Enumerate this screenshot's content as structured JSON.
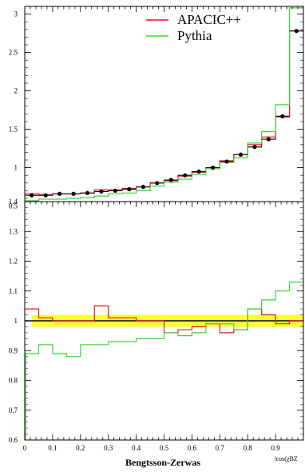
{
  "chart_data": [
    {
      "type": "line",
      "panel": "distribution",
      "xlim": [
        0,
        1
      ],
      "ylim": [
        0.35,
        3.1
      ],
      "yticks": [
        "0.5",
        "1",
        "1.5",
        "2",
        "2.5",
        "3"
      ],
      "bin_edges": [
        0,
        0.05,
        0.1,
        0.15,
        0.2,
        0.25,
        0.3,
        0.35,
        0.4,
        0.45,
        0.5,
        0.55,
        0.6,
        0.65,
        0.7,
        0.75,
        0.8,
        0.85,
        0.9,
        0.95,
        1.0
      ],
      "data_points": {
        "x": [
          0.025,
          0.075,
          0.125,
          0.175,
          0.225,
          0.275,
          0.325,
          0.375,
          0.425,
          0.475,
          0.525,
          0.575,
          0.625,
          0.675,
          0.725,
          0.775,
          0.825,
          0.875,
          0.925,
          0.975
        ],
        "y": [
          0.64,
          0.64,
          0.66,
          0.66,
          0.67,
          0.69,
          0.7,
          0.72,
          0.75,
          0.8,
          0.84,
          0.9,
          0.95,
          1.0,
          1.08,
          1.17,
          1.27,
          1.37,
          1.67,
          2.78
        ]
      },
      "series": [
        {
          "name": "APACIC++",
          "color": "#e8141e",
          "values": [
            0.66,
            0.65,
            0.66,
            0.66,
            0.67,
            0.71,
            0.71,
            0.73,
            0.75,
            0.8,
            0.83,
            0.89,
            0.94,
            0.99,
            1.09,
            1.17,
            1.3,
            1.4,
            1.66,
            2.78
          ]
        },
        {
          "name": "Pythia",
          "color": "#3ad63a",
          "values": [
            0.57,
            0.59,
            0.59,
            0.6,
            0.61,
            0.63,
            0.66,
            0.67,
            0.7,
            0.76,
            0.81,
            0.85,
            0.91,
            0.99,
            1.07,
            1.13,
            1.32,
            1.47,
            1.82,
            3.08
          ]
        }
      ],
      "line_color": "#000000",
      "legend": {
        "position": "top-right",
        "entries": [
          "APACIC++",
          "Pythia"
        ]
      }
    },
    {
      "type": "line",
      "panel": "ratio",
      "xlim": [
        0,
        1
      ],
      "ylim": [
        0.6,
        1.4
      ],
      "xticks": [
        "0",
        "0.1",
        "0.2",
        "0.3",
        "0.4",
        "0.5",
        "0.6",
        "0.7",
        "0.8",
        "0.9"
      ],
      "yticks": [
        "0.6",
        "0.7",
        "0.8",
        "0.9",
        "1",
        "1.1",
        "1.2",
        "1.3",
        "1.4"
      ],
      "band": {
        "low": 0.98,
        "high": 1.02,
        "color": "#ffff33"
      },
      "reference": 1.0,
      "series": [
        {
          "name": "APACIC++",
          "color": "#e8141e",
          "values": [
            1.04,
            1.01,
            1.0,
            1.0,
            1.0,
            1.05,
            1.01,
            1.01,
            1.0,
            1.0,
            0.96,
            0.97,
            0.98,
            0.99,
            0.96,
            0.97,
            1.04,
            1.02,
            0.99,
            1.0
          ]
        },
        {
          "name": "Pythia",
          "color": "#3ad63a",
          "values": [
            0.89,
            0.92,
            0.89,
            0.88,
            0.92,
            0.92,
            0.93,
            0.93,
            0.94,
            0.94,
            0.96,
            0.95,
            0.96,
            0.99,
            0.99,
            0.97,
            1.04,
            1.07,
            1.1,
            1.13
          ]
        }
      ],
      "xlabel": "Bengtsson-Zerwas",
      "xunit": "|cos(χBZ"
    }
  ]
}
